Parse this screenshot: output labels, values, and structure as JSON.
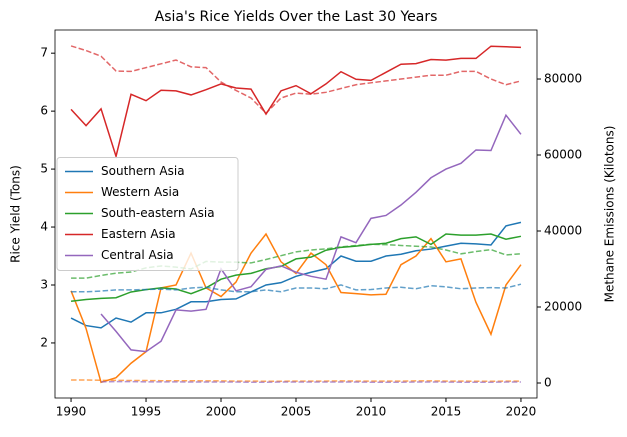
{
  "chart_data": {
    "type": "line",
    "title": "Asia's Rice Yields Over the Last 30 Years",
    "ylabel": "Rice Yield (Tons)",
    "y2label": "Methane Emissions (Kilotons)",
    "x": [
      1990,
      1991,
      1992,
      1993,
      1994,
      1995,
      1996,
      1997,
      1998,
      1999,
      2000,
      2001,
      2002,
      2003,
      2004,
      2005,
      2006,
      2007,
      2008,
      2009,
      2010,
      2011,
      2012,
      2013,
      2014,
      2015,
      2016,
      2017,
      2018,
      2019,
      2020
    ],
    "xlim": [
      1988.93,
      2021.07
    ],
    "xticks": [
      1990,
      1995,
      2000,
      2005,
      2010,
      2015,
      2020
    ],
    "ylim": [
      1.05,
      7.4
    ],
    "yticks": [
      2,
      3,
      4,
      5,
      6,
      7
    ],
    "y2lim": [
      -3950,
      92900
    ],
    "y2ticks": [
      0,
      20000,
      40000,
      60000,
      80000
    ],
    "grid": false,
    "legend": "center left",
    "series": [
      {
        "name": "Southern Asia",
        "color": "#1f77b4",
        "values": [
          2.43,
          2.3,
          2.26,
          2.43,
          2.36,
          2.52,
          2.52,
          2.58,
          2.71,
          2.71,
          2.75,
          2.76,
          2.88,
          3.0,
          3.04,
          3.15,
          3.22,
          3.28,
          3.5,
          3.41,
          3.41,
          3.5,
          3.53,
          3.59,
          3.62,
          3.67,
          3.72,
          3.71,
          3.69,
          4.02,
          4.08
        ]
      },
      {
        "name": "Western Asia",
        "color": "#ff7f0e",
        "values": [
          2.9,
          2.25,
          1.32,
          1.4,
          1.65,
          1.85,
          2.95,
          3.0,
          3.55,
          2.95,
          2.8,
          3.05,
          3.55,
          3.88,
          3.4,
          3.2,
          3.55,
          3.35,
          2.87,
          2.85,
          2.83,
          2.84,
          3.35,
          3.5,
          3.8,
          3.4,
          3.45,
          2.7,
          2.15,
          3.0,
          3.35
        ]
      },
      {
        "name": "South-eastern Asia",
        "color": "#2ca02c",
        "values": [
          2.72,
          2.75,
          2.77,
          2.78,
          2.88,
          2.92,
          2.95,
          2.93,
          2.85,
          2.95,
          3.1,
          3.17,
          3.2,
          3.28,
          3.32,
          3.45,
          3.48,
          3.6,
          3.65,
          3.67,
          3.7,
          3.72,
          3.8,
          3.83,
          3.7,
          3.88,
          3.86,
          3.86,
          3.88,
          3.79,
          3.84
        ]
      },
      {
        "name": "Eastern Asia",
        "color": "#d62728",
        "values": [
          6.03,
          5.75,
          6.04,
          5.22,
          6.29,
          6.18,
          6.36,
          6.35,
          6.28,
          6.37,
          6.47,
          6.4,
          6.38,
          5.95,
          6.35,
          6.44,
          6.3,
          6.47,
          6.68,
          6.55,
          6.53,
          6.67,
          6.81,
          6.82,
          6.89,
          6.88,
          6.91,
          6.91,
          7.12,
          7.11,
          7.1
        ]
      },
      {
        "name": "Central Asia",
        "color": "#9467bd",
        "values": [
          null,
          null,
          2.5,
          2.2,
          1.88,
          1.85,
          2.03,
          2.57,
          2.55,
          2.58,
          3.28,
          2.9,
          2.97,
          3.27,
          3.33,
          3.22,
          3.15,
          3.1,
          3.83,
          3.73,
          4.15,
          4.2,
          4.38,
          4.6,
          4.85,
          5.0,
          5.1,
          5.33,
          5.32,
          5.93,
          5.6
        ]
      },
      {
        "color": "#1f77b4",
        "axis": "y2",
        "linestyle": "dashed",
        "alpha": 0.7,
        "values": [
          24000,
          24000,
          24200,
          24500,
          24500,
          24600,
          24700,
          24500,
          25000,
          25200,
          24500,
          24000,
          24000,
          24500,
          24000,
          25000,
          25000,
          24800,
          25800,
          24500,
          24600,
          25000,
          25200,
          24800,
          25600,
          25300,
          24800,
          25000,
          25100,
          25000,
          26000
        ]
      },
      {
        "color": "#ff7f0e",
        "axis": "y2",
        "linestyle": "dashed",
        "alpha": 0.7,
        "values": [
          800,
          800,
          700,
          700,
          650,
          650,
          600,
          600,
          600,
          550,
          550,
          500,
          500,
          450,
          450,
          500,
          500,
          500,
          550,
          500,
          500,
          500,
          500,
          550,
          550,
          500,
          500,
          450,
          450,
          500,
          500
        ]
      },
      {
        "color": "#2ca02c",
        "axis": "y2",
        "linestyle": "dashed",
        "alpha": 0.7,
        "values": [
          27600,
          27600,
          28300,
          28900,
          29200,
          30300,
          30800,
          30500,
          30000,
          32000,
          31800,
          31800,
          31600,
          32500,
          33500,
          34500,
          35000,
          35300,
          35800,
          36200,
          36500,
          36400,
          36200,
          36000,
          35800,
          35000,
          34000,
          34600,
          35100,
          33700,
          34000
        ]
      },
      {
        "color": "#d62728",
        "axis": "y2",
        "linestyle": "dashed",
        "alpha": 0.7,
        "values": [
          88700,
          87500,
          86000,
          82100,
          82000,
          83000,
          84000,
          85000,
          83200,
          83000,
          79200,
          77000,
          75000,
          71000,
          75000,
          76300,
          76000,
          76500,
          77500,
          78500,
          79000,
          79500,
          80000,
          80500,
          81000,
          81000,
          82000,
          82000,
          80000,
          78500,
          79500
        ]
      },
      {
        "color": "#9467bd",
        "axis": "y2",
        "linestyle": "dashed",
        "alpha": 0.7,
        "values": [
          null,
          null,
          300,
          350,
          350,
          300,
          300,
          300,
          250,
          250,
          250,
          250,
          200,
          200,
          250,
          250,
          250,
          250,
          250,
          250,
          200,
          200,
          200,
          250,
          250,
          250,
          200,
          200,
          200,
          250,
          250
        ]
      }
    ]
  }
}
